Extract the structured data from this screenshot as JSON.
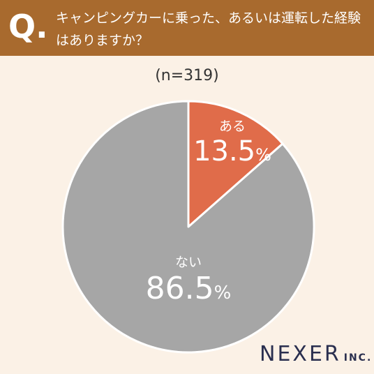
{
  "header": {
    "q_mark": "Q.",
    "question_line1": "キャンピングカーに乗った、あるいは運転した経験",
    "question_line2": "はありますか？"
  },
  "sample_size": "(n=319)",
  "brand": {
    "name": "NEXER",
    "suffix": "INC."
  },
  "colors": {
    "header_bg": "#a86a2e",
    "background": "#fbf1e6",
    "yes": "#e06c4a",
    "no": "#a6a6a6"
  },
  "chart_data": {
    "type": "pie",
    "categories": [
      "ある",
      "ない"
    ],
    "values": [
      13.5,
      86.5
    ],
    "unit": "%",
    "start": "12 o'clock, clockwise"
  }
}
